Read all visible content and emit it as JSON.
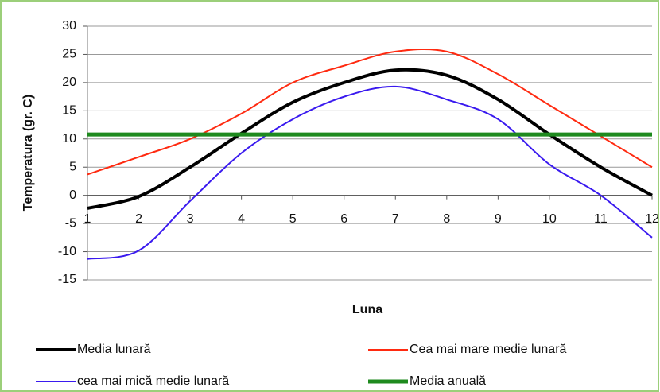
{
  "chart_data": {
    "type": "line",
    "x_label": "Luna",
    "y_label": "Temperatura (gr. C)",
    "x": [
      1,
      2,
      3,
      4,
      5,
      6,
      7,
      8,
      9,
      10,
      11,
      12
    ],
    "xlim": [
      1,
      12
    ],
    "xticks": [
      1,
      2,
      3,
      4,
      5,
      6,
      7,
      8,
      9,
      10,
      11,
      12
    ],
    "ylim": [
      -15,
      30
    ],
    "yticks": [
      -15,
      -10,
      -5,
      0,
      5,
      10,
      15,
      20,
      25,
      30
    ],
    "grid": true,
    "legend": "bottom",
    "series": [
      {
        "name": "Media lunară",
        "color": "#000000",
        "width": 4,
        "values": [
          -2.3,
          -0.2,
          5,
          11,
          16.5,
          20,
          22.2,
          21.3,
          17,
          10.8,
          5,
          0
        ]
      },
      {
        "name": "Cea mai mare medie lunară",
        "color": "#ff2a10",
        "width": 2,
        "values": [
          3.7,
          6.8,
          10,
          14.5,
          20,
          23,
          25.5,
          25.5,
          21.5,
          16,
          10.5,
          5
        ]
      },
      {
        "name": "cea mai mică medie lunară",
        "color": "#3a1aef",
        "width": 2,
        "values": [
          -11.3,
          -9.8,
          -1,
          7.5,
          13.5,
          17.5,
          19.3,
          17,
          13.5,
          5.5,
          0,
          -7.5
        ]
      },
      {
        "name": "Media anuală",
        "color": "#1e8a1e",
        "width": 5,
        "values": [
          10.8,
          10.8,
          10.8,
          10.8,
          10.8,
          10.8,
          10.8,
          10.8,
          10.8,
          10.8,
          10.8,
          10.8
        ]
      }
    ]
  }
}
